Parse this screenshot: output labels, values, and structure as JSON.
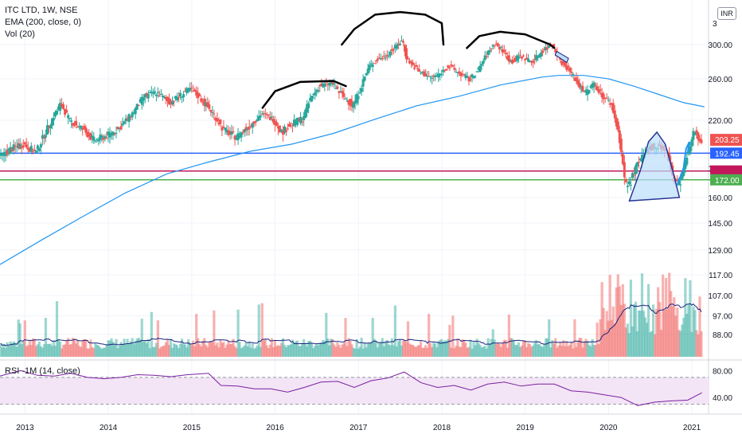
{
  "legend": {
    "symbol": "ITC LTD, 1W, NSE",
    "ema": "EMA (200, close, 0)",
    "vol": "Vol (20)"
  },
  "currency_badge": "INR",
  "rsi_label": "RSI -1M (14, close)",
  "colors": {
    "up": "#26a69a",
    "down": "#ef5350",
    "ema": "#2196f3",
    "support_blue": "#2962ff",
    "support_magenta": "#c2185b",
    "support_green": "#4caf50",
    "price_tag": "#ef5350",
    "rsi_line": "#7b1fa2",
    "rsi_band": "#f3e5f5",
    "annotation": "#000000",
    "pattern_fill": "#bbdefb",
    "pattern_stroke": "#283593"
  },
  "chart_data": [
    {
      "type": "candlestick",
      "symbol": "ITC LTD",
      "interval": "1W",
      "exchange": "NSE",
      "price_axis_ticks": [
        300.0,
        260.0,
        220.0,
        180.0,
        160.0,
        145.0,
        129.0,
        117.0,
        107.0,
        97.0,
        88.0
      ],
      "price_axis_top_label": "3",
      "time_axis_ticks": [
        "2013",
        "2014",
        "2015",
        "2016",
        "2017",
        "2018",
        "2019",
        "2020",
        "2021"
      ],
      "x_range": [
        2012.7,
        2021.2
      ],
      "y_range": [
        0,
        1
      ],
      "horizontal_levels": [
        {
          "value": 192.45,
          "label": "192.45",
          "color": "#2962ff"
        },
        {
          "value": 178.0,
          "label": "",
          "color": "#c2185b"
        },
        {
          "value": 172.0,
          "label": "172.00",
          "color": "#4caf50"
        }
      ],
      "last_price": {
        "value": 203.25,
        "label": "203.25"
      },
      "price_path": [
        [
          2012.7,
          188
        ],
        [
          2012.85,
          196
        ],
        [
          2013.0,
          200
        ],
        [
          2013.15,
          193
        ],
        [
          2013.3,
          215
        ],
        [
          2013.45,
          236
        ],
        [
          2013.55,
          220
        ],
        [
          2013.7,
          213
        ],
        [
          2013.85,
          203
        ],
        [
          2014.0,
          207
        ],
        [
          2014.15,
          213
        ],
        [
          2014.3,
          226
        ],
        [
          2014.45,
          243
        ],
        [
          2014.6,
          247
        ],
        [
          2014.75,
          237
        ],
        [
          2014.9,
          245
        ],
        [
          2015.0,
          250
        ],
        [
          2015.1,
          243
        ],
        [
          2015.25,
          229
        ],
        [
          2015.4,
          212
        ],
        [
          2015.55,
          206
        ],
        [
          2015.7,
          214
        ],
        [
          2015.85,
          226
        ],
        [
          2016.0,
          221
        ],
        [
          2016.1,
          210
        ],
        [
          2016.2,
          216
        ],
        [
          2016.35,
          222
        ],
        [
          2016.45,
          242
        ],
        [
          2016.55,
          253
        ],
        [
          2016.7,
          256
        ],
        [
          2016.8,
          246
        ],
        [
          2016.95,
          234
        ],
        [
          2017.05,
          252
        ],
        [
          2017.15,
          275
        ],
        [
          2017.25,
          283
        ],
        [
          2017.35,
          287
        ],
        [
          2017.45,
          296
        ],
        [
          2017.55,
          305
        ],
        [
          2017.6,
          283
        ],
        [
          2017.75,
          268
        ],
        [
          2017.9,
          261
        ],
        [
          2018.0,
          266
        ],
        [
          2018.1,
          275
        ],
        [
          2018.25,
          265
        ],
        [
          2018.35,
          259
        ],
        [
          2018.45,
          269
        ],
        [
          2018.55,
          287
        ],
        [
          2018.65,
          301
        ],
        [
          2018.75,
          293
        ],
        [
          2018.85,
          279
        ],
        [
          2018.95,
          287
        ],
        [
          2019.1,
          280
        ],
        [
          2019.25,
          295
        ],
        [
          2019.35,
          300
        ],
        [
          2019.45,
          280
        ],
        [
          2019.55,
          270
        ],
        [
          2019.65,
          255
        ],
        [
          2019.75,
          247
        ],
        [
          2019.85,
          256
        ],
        [
          2019.95,
          243
        ],
        [
          2020.05,
          236
        ],
        [
          2020.15,
          205
        ],
        [
          2020.22,
          168
        ],
        [
          2020.28,
          170
        ],
        [
          2020.35,
          181
        ],
        [
          2020.45,
          191
        ],
        [
          2020.55,
          199
        ],
        [
          2020.65,
          197
        ],
        [
          2020.72,
          193
        ],
        [
          2020.8,
          171
        ],
        [
          2020.88,
          170
        ],
        [
          2020.95,
          186
        ],
        [
          2021.05,
          212
        ],
        [
          2021.12,
          203.25
        ]
      ],
      "ema_200": [
        [
          2012.7,
          122
        ],
        [
          2013.2,
          135
        ],
        [
          2013.7,
          149
        ],
        [
          2014.2,
          163
        ],
        [
          2014.7,
          176
        ],
        [
          2015.2,
          185
        ],
        [
          2015.7,
          194
        ],
        [
          2016.2,
          200
        ],
        [
          2016.7,
          209
        ],
        [
          2017.2,
          221
        ],
        [
          2017.7,
          234
        ],
        [
          2018.2,
          243
        ],
        [
          2018.7,
          254
        ],
        [
          2019.2,
          262
        ],
        [
          2019.4,
          264
        ],
        [
          2019.7,
          264
        ],
        [
          2020.0,
          260
        ],
        [
          2020.3,
          253
        ],
        [
          2020.6,
          245
        ],
        [
          2020.9,
          237
        ],
        [
          2021.15,
          233
        ]
      ],
      "volume_axis_ticks": [
        117.0,
        107.0,
        97.0,
        88.0
      ],
      "volume_note": "Volume histogram with Vol(20) moving average; individual bar values not printed"
    },
    {
      "type": "line",
      "name": "RSI -1M (14, close)",
      "y_axis_ticks": [
        "80.00",
        "40.00"
      ],
      "ylim": [
        20,
        90
      ],
      "band": [
        30,
        70
      ],
      "x": [
        2012.7,
        2012.95,
        2013.15,
        2013.35,
        2013.55,
        2013.75,
        2013.95,
        2014.15,
        2014.35,
        2014.55,
        2014.75,
        2014.95,
        2015.2,
        2015.35,
        2015.55,
        2015.75,
        2015.95,
        2016.15,
        2016.35,
        2016.55,
        2016.75,
        2016.95,
        2017.15,
        2017.35,
        2017.55,
        2017.75,
        2017.95,
        2018.15,
        2018.35,
        2018.55,
        2018.75,
        2018.95,
        2019.15,
        2019.35,
        2019.55,
        2019.75,
        2019.95,
        2020.15,
        2020.35,
        2020.55,
        2020.75,
        2020.95,
        2021.12
      ],
      "values": [
        72,
        80,
        73,
        72,
        76,
        70,
        68,
        70,
        74,
        73,
        71,
        74,
        76,
        58,
        57,
        53,
        53,
        48,
        55,
        63,
        64,
        55,
        65,
        69,
        78,
        62,
        55,
        58,
        51,
        60,
        63,
        57,
        60,
        60,
        50,
        48,
        44,
        40,
        28,
        33,
        35,
        36,
        47
      ]
    }
  ]
}
